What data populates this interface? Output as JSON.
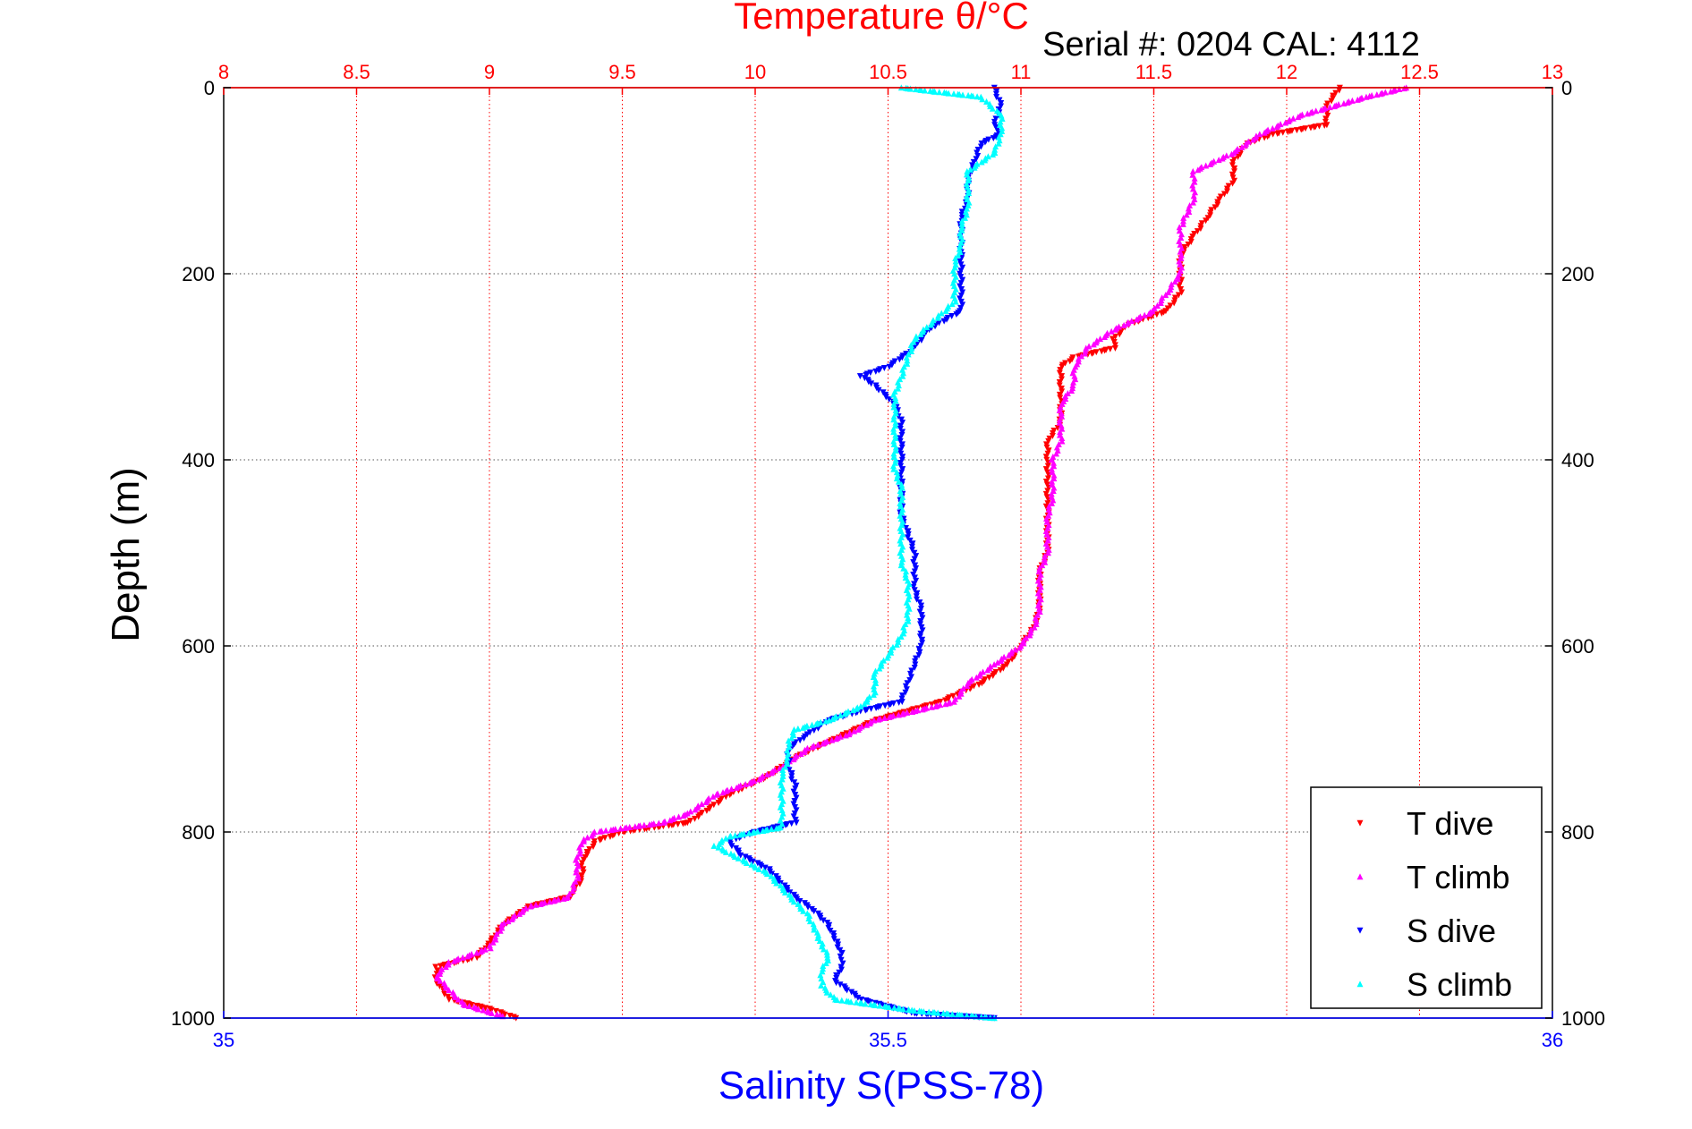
{
  "chart_data": {
    "type": "scatter",
    "title": "Temperature θ/°C",
    "subtitle": "Serial #: 0204  CAL: 4112",
    "xlabel_top": "Temperature θ/°C",
    "xlabel_bottom": "Salinity S(PSS-78)",
    "ylabel": "Depth (m)",
    "x_top_lim": [
      8,
      13
    ],
    "x_top_ticks": [
      "8",
      "8.5",
      "9",
      "9.5",
      "10",
      "10.5",
      "11",
      "11.5",
      "12",
      "12.5",
      "13"
    ],
    "x_bottom_lim": [
      35,
      36
    ],
    "x_bottom_ticks": [
      "35",
      "35.5",
      "36"
    ],
    "y_lim": [
      0,
      1000
    ],
    "y_reversed": true,
    "y_ticks": [
      "0",
      "200",
      "400",
      "600",
      "800",
      "1000"
    ],
    "grid": true,
    "legend_position": "bottom-right",
    "series": [
      {
        "name": "T dive",
        "axis": "temperature",
        "color": "#ff0000",
        "marker": "down-triangle",
        "points": [
          [
            12.2,
            0
          ],
          [
            12.15,
            20
          ],
          [
            12.15,
            40
          ],
          [
            11.95,
            50
          ],
          [
            11.85,
            60
          ],
          [
            11.8,
            80
          ],
          [
            11.8,
            100
          ],
          [
            11.75,
            120
          ],
          [
            11.7,
            140
          ],
          [
            11.65,
            160
          ],
          [
            11.6,
            180
          ],
          [
            11.6,
            200
          ],
          [
            11.6,
            220
          ],
          [
            11.55,
            240
          ],
          [
            11.4,
            255
          ],
          [
            11.35,
            270
          ],
          [
            11.35,
            280
          ],
          [
            11.2,
            290
          ],
          [
            11.15,
            300
          ],
          [
            11.15,
            320
          ],
          [
            11.15,
            340
          ],
          [
            11.15,
            360
          ],
          [
            11.1,
            380
          ],
          [
            11.1,
            400
          ],
          [
            11.1,
            420
          ],
          [
            11.1,
            440
          ],
          [
            11.1,
            460
          ],
          [
            11.1,
            480
          ],
          [
            11.1,
            500
          ],
          [
            11.07,
            520
          ],
          [
            11.07,
            540
          ],
          [
            11.07,
            560
          ],
          [
            11.05,
            580
          ],
          [
            11.0,
            600
          ],
          [
            10.95,
            620
          ],
          [
            10.85,
            640
          ],
          [
            10.7,
            660
          ],
          [
            10.45,
            680
          ],
          [
            10.3,
            700
          ],
          [
            10.15,
            720
          ],
          [
            10.05,
            740
          ],
          [
            9.9,
            760
          ],
          [
            9.75,
            790
          ],
          [
            9.5,
            800
          ],
          [
            9.4,
            810
          ],
          [
            9.35,
            830
          ],
          [
            9.35,
            850
          ],
          [
            9.3,
            870
          ],
          [
            9.15,
            880
          ],
          [
            9.05,
            900
          ],
          [
            9.0,
            920
          ],
          [
            8.95,
            935
          ],
          [
            8.8,
            945
          ],
          [
            8.8,
            960
          ],
          [
            8.85,
            980
          ],
          [
            9.0,
            990
          ],
          [
            9.1,
            1000
          ]
        ]
      },
      {
        "name": "T climb",
        "axis": "temperature",
        "color": "#ff00ff",
        "marker": "up-triangle",
        "points": [
          [
            12.45,
            0
          ],
          [
            12.3,
            10
          ],
          [
            12.05,
            30
          ],
          [
            11.9,
            50
          ],
          [
            11.8,
            70
          ],
          [
            11.65,
            90
          ],
          [
            11.65,
            120
          ],
          [
            11.6,
            150
          ],
          [
            11.6,
            180
          ],
          [
            11.6,
            200
          ],
          [
            11.55,
            220
          ],
          [
            11.5,
            240
          ],
          [
            11.35,
            260
          ],
          [
            11.25,
            280
          ],
          [
            11.2,
            300
          ],
          [
            11.2,
            320
          ],
          [
            11.15,
            340
          ],
          [
            11.15,
            360
          ],
          [
            11.15,
            380
          ],
          [
            11.12,
            400
          ],
          [
            11.12,
            420
          ],
          [
            11.12,
            440
          ],
          [
            11.1,
            460
          ],
          [
            11.1,
            480
          ],
          [
            11.1,
            500
          ],
          [
            11.07,
            520
          ],
          [
            11.07,
            540
          ],
          [
            11.07,
            560
          ],
          [
            11.05,
            580
          ],
          [
            11.0,
            600
          ],
          [
            10.9,
            620
          ],
          [
            10.8,
            640
          ],
          [
            10.75,
            660
          ],
          [
            10.6,
            670
          ],
          [
            10.45,
            680
          ],
          [
            10.35,
            695
          ],
          [
            10.2,
            710
          ],
          [
            10.1,
            730
          ],
          [
            10.0,
            745
          ],
          [
            9.85,
            760
          ],
          [
            9.75,
            780
          ],
          [
            9.65,
            790
          ],
          [
            9.4,
            800
          ],
          [
            9.35,
            810
          ],
          [
            9.33,
            830
          ],
          [
            9.33,
            850
          ],
          [
            9.3,
            870
          ],
          [
            9.15,
            880
          ],
          [
            9.05,
            900
          ],
          [
            9.0,
            925
          ],
          [
            8.85,
            940
          ],
          [
            8.8,
            955
          ],
          [
            8.85,
            970
          ],
          [
            8.9,
            985
          ],
          [
            9.05,
            998
          ]
        ]
      },
      {
        "name": "S dive",
        "axis": "salinity",
        "color": "#0000ff",
        "marker": "down-triangle",
        "points": [
          [
            35.58,
            0
          ],
          [
            35.585,
            20
          ],
          [
            35.58,
            40
          ],
          [
            35.585,
            50
          ],
          [
            35.57,
            60
          ],
          [
            35.565,
            80
          ],
          [
            35.56,
            100
          ],
          [
            35.56,
            120
          ],
          [
            35.555,
            140
          ],
          [
            35.555,
            160
          ],
          [
            35.555,
            180
          ],
          [
            35.555,
            200
          ],
          [
            35.555,
            220
          ],
          [
            35.555,
            240
          ],
          [
            35.53,
            260
          ],
          [
            35.52,
            280
          ],
          [
            35.5,
            300
          ],
          [
            35.48,
            310
          ],
          [
            35.49,
            320
          ],
          [
            35.505,
            340
          ],
          [
            35.51,
            360
          ],
          [
            35.51,
            380
          ],
          [
            35.51,
            400
          ],
          [
            35.51,
            420
          ],
          [
            35.51,
            440
          ],
          [
            35.51,
            460
          ],
          [
            35.515,
            480
          ],
          [
            35.52,
            500
          ],
          [
            35.52,
            520
          ],
          [
            35.52,
            540
          ],
          [
            35.525,
            560
          ],
          [
            35.525,
            580
          ],
          [
            35.525,
            600
          ],
          [
            35.52,
            620
          ],
          [
            35.515,
            640
          ],
          [
            35.51,
            660
          ],
          [
            35.48,
            670
          ],
          [
            35.455,
            680
          ],
          [
            35.44,
            695
          ],
          [
            35.425,
            710
          ],
          [
            35.425,
            730
          ],
          [
            35.43,
            750
          ],
          [
            35.43,
            770
          ],
          [
            35.43,
            790
          ],
          [
            35.4,
            800
          ],
          [
            35.38,
            810
          ],
          [
            35.39,
            825
          ],
          [
            35.41,
            840
          ],
          [
            35.42,
            855
          ],
          [
            35.43,
            870
          ],
          [
            35.445,
            885
          ],
          [
            35.455,
            900
          ],
          [
            35.46,
            915
          ],
          [
            35.465,
            930
          ],
          [
            35.465,
            945
          ],
          [
            35.46,
            960
          ],
          [
            35.48,
            980
          ],
          [
            35.52,
            995
          ],
          [
            35.58,
            1000
          ]
        ]
      },
      {
        "name": "S climb",
        "axis": "salinity",
        "color": "#00ffff",
        "marker": "up-triangle",
        "points": [
          [
            35.51,
            0
          ],
          [
            35.57,
            10
          ],
          [
            35.585,
            30
          ],
          [
            35.585,
            50
          ],
          [
            35.58,
            70
          ],
          [
            35.56,
            90
          ],
          [
            35.56,
            110
          ],
          [
            35.56,
            130
          ],
          [
            35.555,
            150
          ],
          [
            35.555,
            170
          ],
          [
            35.55,
            190
          ],
          [
            35.55,
            210
          ],
          [
            35.55,
            230
          ],
          [
            35.535,
            250
          ],
          [
            35.52,
            270
          ],
          [
            35.515,
            290
          ],
          [
            35.51,
            310
          ],
          [
            35.505,
            330
          ],
          [
            35.505,
            350
          ],
          [
            35.505,
            370
          ],
          [
            35.505,
            390
          ],
          [
            35.505,
            410
          ],
          [
            35.51,
            430
          ],
          [
            35.51,
            450
          ],
          [
            35.51,
            470
          ],
          [
            35.51,
            490
          ],
          [
            35.51,
            510
          ],
          [
            35.515,
            530
          ],
          [
            35.515,
            550
          ],
          [
            35.515,
            570
          ],
          [
            35.51,
            590
          ],
          [
            35.5,
            610
          ],
          [
            35.49,
            630
          ],
          [
            35.49,
            650
          ],
          [
            35.48,
            665
          ],
          [
            35.455,
            680
          ],
          [
            35.43,
            690
          ],
          [
            35.425,
            705
          ],
          [
            35.425,
            720
          ],
          [
            35.42,
            740
          ],
          [
            35.42,
            760
          ],
          [
            35.42,
            780
          ],
          [
            35.42,
            795
          ],
          [
            35.38,
            805
          ],
          [
            35.37,
            815
          ],
          [
            35.39,
            830
          ],
          [
            35.41,
            845
          ],
          [
            35.42,
            860
          ],
          [
            35.43,
            875
          ],
          [
            35.44,
            890
          ],
          [
            35.445,
            905
          ],
          [
            35.45,
            920
          ],
          [
            35.455,
            935
          ],
          [
            35.45,
            950
          ],
          [
            35.45,
            965
          ],
          [
            35.46,
            980
          ],
          [
            35.52,
            992
          ],
          [
            35.58,
            1000
          ]
        ]
      }
    ]
  }
}
